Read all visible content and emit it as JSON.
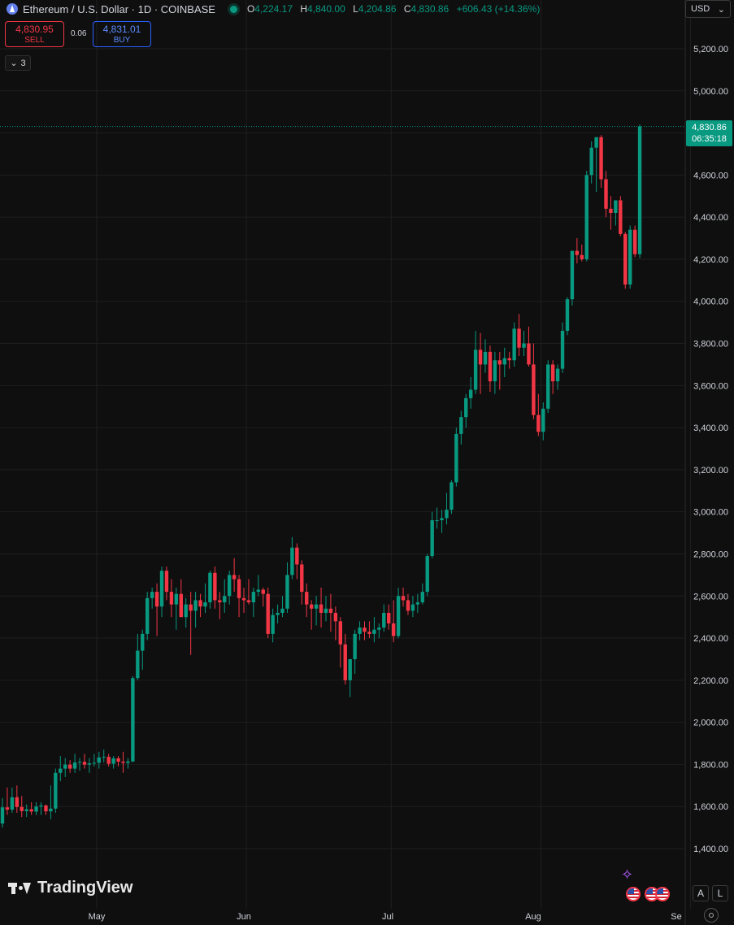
{
  "header": {
    "symbol": "Ethereum / U.S. Dollar · 1D · COINBASE",
    "open_label": "O",
    "open": "4,224.17",
    "high_label": "H",
    "high": "4,840.00",
    "low_label": "L",
    "low": "4,204.86",
    "close_label": "C",
    "close": "4,830.86",
    "change": "+606.43 (+14.36%)"
  },
  "currency": {
    "label": "USD",
    "icon": "chevron-down-icon"
  },
  "trade": {
    "sell_price": "4,830.95",
    "sell_label": "SELL",
    "spread": "0.06",
    "buy_price": "4,831.01",
    "buy_label": "BUY"
  },
  "indicators_toggle": {
    "count": "3",
    "icon": "chevron-down-icon"
  },
  "price_tag": {
    "price": "4,830.86",
    "countdown": "06:35:18"
  },
  "branding": {
    "logo_text": "TradingView"
  },
  "bottom_buttons": {
    "auto": "A",
    "log": "L"
  },
  "colors": {
    "up": "#089981",
    "down": "#f23645",
    "background": "#0f0f0f",
    "grid": "#1f1f1f",
    "buy": "#2962ff"
  },
  "chart_data": {
    "type": "candlestick",
    "title": "",
    "y_axis": {
      "min": 1300,
      "max": 5300,
      "ticks": [
        1400,
        1600,
        1800,
        2000,
        2200,
        2400,
        2600,
        2800,
        3000,
        3200,
        3400,
        3600,
        3800,
        4000,
        4200,
        4400,
        4600,
        4800,
        5000,
        5200
      ],
      "tick_labels": [
        "1,400.00",
        "1,600.00",
        "1,800.00",
        "2,000.00",
        "2,200.00",
        "2,400.00",
        "2,600.00",
        "2,800.00",
        "3,000.00",
        "3,200.00",
        "3,400.00",
        "3,600.00",
        "3,800.00",
        "4,000.00",
        "4,200.00",
        "4,400.00",
        "4,600.00",
        "4,800.00",
        "5,000.00",
        "5,200.00"
      ]
    },
    "x_axis": {
      "labels": [
        {
          "label": "May",
          "index": 0
        },
        {
          "label": "Jun",
          "index": 31
        },
        {
          "label": "Jul",
          "index": 61
        },
        {
          "label": "Aug",
          "index": 92
        },
        {
          "label": "Se",
          "index": 123
        }
      ],
      "first_date": "2025-04-10",
      "grid_indices": [
        0,
        31,
        61,
        92,
        123
      ]
    },
    "last_price": 4830.86,
    "ohlc": [
      [
        1519,
        1640,
        1500,
        1596
      ],
      [
        1596,
        1690,
        1560,
        1585
      ],
      [
        1585,
        1690,
        1570,
        1644
      ],
      [
        1644,
        1700,
        1570,
        1598
      ],
      [
        1598,
        1650,
        1550,
        1578
      ],
      [
        1578,
        1610,
        1550,
        1587
      ],
      [
        1587,
        1620,
        1560,
        1576
      ],
      [
        1576,
        1620,
        1560,
        1600
      ],
      [
        1600,
        1620,
        1560,
        1605
      ],
      [
        1605,
        1610,
        1560,
        1577
      ],
      [
        1577,
        1700,
        1540,
        1590
      ],
      [
        1590,
        1780,
        1570,
        1760
      ],
      [
        1760,
        1840,
        1720,
        1780
      ],
      [
        1780,
        1830,
        1740,
        1799
      ],
      [
        1799,
        1820,
        1760,
        1780
      ],
      [
        1780,
        1850,
        1760,
        1809
      ],
      [
        1809,
        1830,
        1770,
        1812
      ],
      [
        1812,
        1850,
        1780,
        1799
      ],
      [
        1799,
        1830,
        1760,
        1805
      ],
      [
        1805,
        1850,
        1790,
        1808
      ],
      [
        1808,
        1860,
        1780,
        1833
      ],
      [
        1833,
        1870,
        1810,
        1836
      ],
      [
        1836,
        1850,
        1790,
        1803
      ],
      [
        1803,
        1840,
        1780,
        1829
      ],
      [
        1829,
        1840,
        1790,
        1813
      ],
      [
        1813,
        1860,
        1760,
        1807
      ],
      [
        1807,
        1830,
        1780,
        1814
      ],
      [
        1814,
        2220,
        1810,
        2210
      ],
      [
        2210,
        2420,
        2200,
        2340
      ],
      [
        2340,
        2440,
        2250,
        2420
      ],
      [
        2420,
        2620,
        2390,
        2590
      ],
      [
        2590,
        2640,
        2540,
        2620
      ],
      [
        2620,
        2660,
        2410,
        2550
      ],
      [
        2550,
        2740,
        2500,
        2720
      ],
      [
        2720,
        2740,
        2580,
        2620
      ],
      [
        2620,
        2680,
        2500,
        2560
      ],
      [
        2560,
        2640,
        2440,
        2610
      ],
      [
        2610,
        2680,
        2500,
        2500
      ],
      [
        2500,
        2590,
        2450,
        2560
      ],
      [
        2560,
        2620,
        2320,
        2530
      ],
      [
        2530,
        2620,
        2450,
        2580
      ],
      [
        2580,
        2610,
        2500,
        2550
      ],
      [
        2550,
        2660,
        2520,
        2570
      ],
      [
        2570,
        2720,
        2540,
        2710
      ],
      [
        2710,
        2740,
        2540,
        2580
      ],
      [
        2580,
        2620,
        2490,
        2570
      ],
      [
        2570,
        2680,
        2520,
        2600
      ],
      [
        2600,
        2720,
        2560,
        2700
      ],
      [
        2700,
        2780,
        2620,
        2680
      ],
      [
        2680,
        2700,
        2500,
        2590
      ],
      [
        2590,
        2640,
        2520,
        2580
      ],
      [
        2580,
        2680,
        2560,
        2570
      ],
      [
        2570,
        2640,
        2500,
        2620
      ],
      [
        2620,
        2700,
        2600,
        2630
      ],
      [
        2630,
        2640,
        2550,
        2610
      ],
      [
        2610,
        2640,
        2400,
        2420
      ],
      [
        2420,
        2540,
        2380,
        2510
      ],
      [
        2510,
        2560,
        2470,
        2520
      ],
      [
        2520,
        2600,
        2500,
        2540
      ],
      [
        2540,
        2760,
        2520,
        2700
      ],
      [
        2700,
        2880,
        2680,
        2830
      ],
      [
        2830,
        2850,
        2680,
        2750
      ],
      [
        2750,
        2770,
        2560,
        2620
      ],
      [
        2620,
        2660,
        2500,
        2560
      ],
      [
        2560,
        2580,
        2440,
        2540
      ],
      [
        2540,
        2600,
        2460,
        2560
      ],
      [
        2560,
        2640,
        2450,
        2520
      ],
      [
        2520,
        2600,
        2480,
        2540
      ],
      [
        2540,
        2610,
        2430,
        2520
      ],
      [
        2520,
        2550,
        2390,
        2480
      ],
      [
        2480,
        2500,
        2260,
        2370
      ],
      [
        2370,
        2420,
        2180,
        2200
      ],
      [
        2200,
        2300,
        2120,
        2300
      ],
      [
        2300,
        2440,
        2230,
        2420
      ],
      [
        2420,
        2480,
        2390,
        2450
      ],
      [
        2450,
        2480,
        2390,
        2430
      ],
      [
        2430,
        2480,
        2400,
        2420
      ],
      [
        2420,
        2500,
        2380,
        2440
      ],
      [
        2440,
        2470,
        2400,
        2450
      ],
      [
        2450,
        2560,
        2430,
        2520
      ],
      [
        2520,
        2560,
        2440,
        2470
      ],
      [
        2470,
        2580,
        2380,
        2410
      ],
      [
        2410,
        2640,
        2400,
        2600
      ],
      [
        2600,
        2640,
        2550,
        2580
      ],
      [
        2580,
        2610,
        2510,
        2530
      ],
      [
        2530,
        2600,
        2500,
        2560
      ],
      [
        2560,
        2610,
        2520,
        2570
      ],
      [
        2570,
        2660,
        2560,
        2620
      ],
      [
        2620,
        2800,
        2600,
        2790
      ],
      [
        2790,
        3000,
        2780,
        2960
      ],
      [
        2960,
        3020,
        2920,
        2960
      ],
      [
        2960,
        3010,
        2900,
        2970
      ],
      [
        2970,
        3090,
        2940,
        3010
      ],
      [
        3010,
        3150,
        2990,
        3140
      ],
      [
        3140,
        3400,
        3120,
        3370
      ],
      [
        3370,
        3480,
        3320,
        3450
      ],
      [
        3450,
        3560,
        3400,
        3540
      ],
      [
        3540,
        3640,
        3490,
        3580
      ],
      [
        3580,
        3860,
        3560,
        3770
      ],
      [
        3770,
        3850,
        3560,
        3700
      ],
      [
        3700,
        3820,
        3660,
        3760
      ],
      [
        3760,
        3790,
        3570,
        3620
      ],
      [
        3620,
        3760,
        3560,
        3720
      ],
      [
        3720,
        3760,
        3580,
        3700
      ],
      [
        3700,
        3780,
        3640,
        3730
      ],
      [
        3730,
        3760,
        3680,
        3720
      ],
      [
        3720,
        3900,
        3690,
        3870
      ],
      [
        3870,
        3940,
        3740,
        3780
      ],
      [
        3780,
        3860,
        3740,
        3800
      ],
      [
        3800,
        3880,
        3690,
        3700
      ],
      [
        3700,
        3800,
        3440,
        3460
      ],
      [
        3460,
        3560,
        3360,
        3380
      ],
      [
        3380,
        3520,
        3340,
        3490
      ],
      [
        3490,
        3720,
        3470,
        3700
      ],
      [
        3700,
        3720,
        3560,
        3620
      ],
      [
        3620,
        3700,
        3580,
        3680
      ],
      [
        3680,
        3900,
        3660,
        3860
      ],
      [
        3860,
        4020,
        3840,
        4010
      ],
      [
        4010,
        4240,
        3980,
        4240
      ],
      [
        4240,
        4300,
        4180,
        4220
      ],
      [
        4220,
        4270,
        4190,
        4200
      ],
      [
        4200,
        4620,
        4190,
        4600
      ],
      [
        4600,
        4760,
        4560,
        4730
      ],
      [
        4730,
        4780,
        4520,
        4780
      ],
      [
        4780,
        4790,
        4540,
        4580
      ],
      [
        4580,
        4620,
        4400,
        4440
      ],
      [
        4440,
        4500,
        4340,
        4420
      ],
      [
        4420,
        4460,
        4360,
        4480
      ],
      [
        4480,
        4500,
        4310,
        4320
      ],
      [
        4320,
        4330,
        4060,
        4080
      ],
      [
        4080,
        4360,
        4060,
        4340
      ],
      [
        4340,
        4360,
        4210,
        4224
      ],
      [
        4224,
        4840,
        4205,
        4831
      ]
    ]
  }
}
